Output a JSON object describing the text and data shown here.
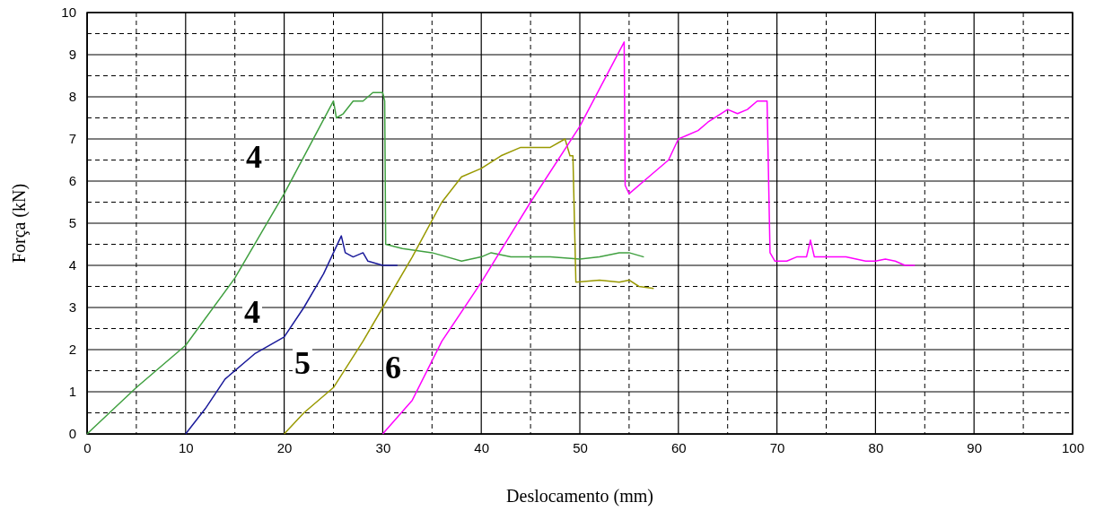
{
  "chart_data": {
    "type": "line",
    "xlabel": "Deslocamento (mm)",
    "ylabel": "Força (kN)",
    "xlim": [
      0,
      100
    ],
    "ylim": [
      0,
      10
    ],
    "xticks": [
      0,
      10,
      20,
      30,
      40,
      50,
      60,
      70,
      80,
      90,
      100
    ],
    "yticks": [
      0,
      1,
      2,
      3,
      4,
      5,
      6,
      7,
      8,
      9,
      10
    ],
    "grid": true,
    "line_style": "solid",
    "series": [
      {
        "color": "#40a040",
        "x": [
          0,
          5,
          10,
          15,
          20,
          25,
          25.3,
          26,
          27,
          28,
          29,
          30,
          30.2,
          30.3,
          32,
          35,
          38,
          40,
          41,
          43,
          45,
          47,
          50,
          52,
          54,
          55,
          56.5
        ],
        "values": [
          0,
          1.1,
          2.1,
          3.7,
          5.7,
          7.9,
          7.5,
          7.6,
          7.9,
          7.9,
          8.1,
          8.1,
          7.9,
          4.5,
          4.4,
          4.3,
          4.1,
          4.2,
          4.3,
          4.2,
          4.2,
          4.2,
          4.15,
          4.2,
          4.3,
          4.3,
          4.2
        ]
      },
      {
        "color": "#1a1a9a",
        "x": [
          10,
          12,
          14,
          17,
          20,
          22,
          24,
          25.8,
          26.2,
          27,
          28,
          28.5,
          30,
          31.5
        ],
        "values": [
          0,
          0.6,
          1.3,
          1.9,
          2.3,
          3.0,
          3.8,
          4.7,
          4.3,
          4.2,
          4.3,
          4.1,
          4.0,
          4.0
        ]
      },
      {
        "color": "#999900",
        "x": [
          20,
          22,
          25,
          28,
          30,
          33,
          36,
          38,
          40,
          42,
          44,
          46,
          47,
          48.5,
          49,
          49.3,
          49.6,
          52,
          54,
          55,
          56,
          57.5
        ],
        "values": [
          0,
          0.5,
          1.1,
          2.2,
          3.0,
          4.2,
          5.5,
          6.1,
          6.3,
          6.6,
          6.8,
          6.8,
          6.8,
          7.0,
          6.6,
          6.6,
          3.6,
          3.65,
          3.6,
          3.65,
          3.5,
          3.45
        ]
      },
      {
        "color": "#ff00ff",
        "x": [
          30,
          33,
          36,
          40,
          45,
          50,
          54.5,
          54.6,
          55,
          57,
          59,
          60,
          62,
          63,
          65,
          66,
          67,
          68,
          69,
          69.3,
          69.8,
          71,
          72,
          73,
          73.4,
          73.8,
          75,
          77,
          79,
          80,
          81,
          82,
          83,
          84
        ],
        "values": [
          0,
          0.8,
          2.2,
          3.6,
          5.5,
          7.3,
          9.3,
          5.9,
          5.7,
          6.1,
          6.5,
          7.0,
          7.2,
          7.4,
          7.7,
          7.6,
          7.7,
          7.9,
          7.9,
          4.3,
          4.1,
          4.1,
          4.2,
          4.2,
          4.6,
          4.2,
          4.2,
          4.2,
          4.1,
          4.1,
          4.15,
          4.1,
          4.0,
          4.0
        ]
      }
    ],
    "annotations": [
      "4",
      "4",
      "5",
      "6"
    ]
  }
}
